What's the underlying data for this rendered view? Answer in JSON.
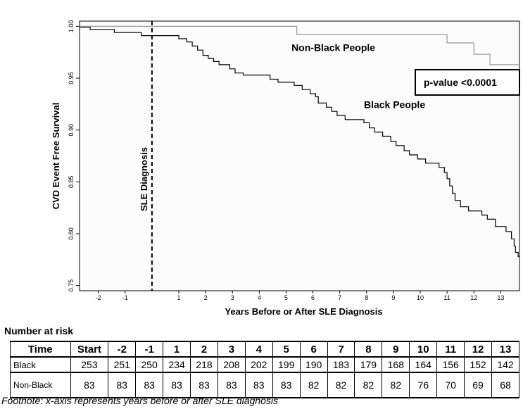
{
  "chart_data": {
    "type": "line",
    "title": "",
    "xlabel": "Years Before or After SLE Diagnosis",
    "ylabel": "CVD Event Free Survival",
    "xlim": [
      -2.7,
      13.7
    ],
    "ylim": [
      0.745,
      1.005
    ],
    "x_ticks": [
      -2,
      -1,
      1,
      2,
      3,
      4,
      5,
      6,
      7,
      8,
      9,
      10,
      11,
      12,
      13
    ],
    "y_ticks": [
      "0.75",
      "0.80",
      "0.85",
      "0.90",
      "0.95",
      "1.00"
    ],
    "vline": {
      "x": 0,
      "label": "SLE Diagnosis"
    },
    "pvalue_label": "p-value <0.0001",
    "series": [
      {
        "name": "Non-Black People",
        "color": "#999999",
        "step": true,
        "points": [
          [
            -2.7,
            1.0
          ],
          [
            5.4,
            1.0
          ],
          [
            5.4,
            0.992
          ],
          [
            11.0,
            0.992
          ],
          [
            11.0,
            0.984
          ],
          [
            12.0,
            0.984
          ],
          [
            12.0,
            0.973
          ],
          [
            12.6,
            0.973
          ],
          [
            12.6,
            0.963
          ],
          [
            13.7,
            0.963
          ]
        ]
      },
      {
        "name": "Black People",
        "color": "#000000",
        "step": true,
        "points": [
          [
            -2.7,
            0.999
          ],
          [
            -2.3,
            0.999
          ],
          [
            -2.3,
            0.997
          ],
          [
            -1.4,
            0.997
          ],
          [
            -1.4,
            0.994
          ],
          [
            -0.4,
            0.994
          ],
          [
            -0.4,
            0.991
          ],
          [
            1.0,
            0.991
          ],
          [
            1.0,
            0.988
          ],
          [
            1.3,
            0.988
          ],
          [
            1.3,
            0.985
          ],
          [
            1.5,
            0.985
          ],
          [
            1.5,
            0.981
          ],
          [
            1.7,
            0.981
          ],
          [
            1.7,
            0.977
          ],
          [
            1.9,
            0.977
          ],
          [
            1.9,
            0.972
          ],
          [
            2.1,
            0.972
          ],
          [
            2.1,
            0.969
          ],
          [
            2.3,
            0.969
          ],
          [
            2.3,
            0.966
          ],
          [
            2.5,
            0.966
          ],
          [
            2.5,
            0.963
          ],
          [
            2.9,
            0.963
          ],
          [
            2.9,
            0.959
          ],
          [
            3.1,
            0.959
          ],
          [
            3.1,
            0.955
          ],
          [
            3.4,
            0.955
          ],
          [
            3.4,
            0.953
          ],
          [
            4.4,
            0.953
          ],
          [
            4.4,
            0.949
          ],
          [
            4.7,
            0.949
          ],
          [
            4.7,
            0.946
          ],
          [
            5.3,
            0.946
          ],
          [
            5.3,
            0.943
          ],
          [
            5.6,
            0.943
          ],
          [
            5.6,
            0.939
          ],
          [
            5.9,
            0.939
          ],
          [
            5.9,
            0.935
          ],
          [
            6.1,
            0.935
          ],
          [
            6.1,
            0.932
          ],
          [
            6.2,
            0.932
          ],
          [
            6.2,
            0.926
          ],
          [
            6.5,
            0.926
          ],
          [
            6.5,
            0.922
          ],
          [
            6.7,
            0.922
          ],
          [
            6.7,
            0.918
          ],
          [
            6.9,
            0.918
          ],
          [
            6.9,
            0.914
          ],
          [
            7.2,
            0.914
          ],
          [
            7.2,
            0.91
          ],
          [
            7.9,
            0.91
          ],
          [
            7.9,
            0.907
          ],
          [
            8.1,
            0.907
          ],
          [
            8.1,
            0.902
          ],
          [
            8.3,
            0.902
          ],
          [
            8.3,
            0.898
          ],
          [
            8.6,
            0.898
          ],
          [
            8.6,
            0.894
          ],
          [
            8.9,
            0.894
          ],
          [
            8.9,
            0.889
          ],
          [
            9.1,
            0.889
          ],
          [
            9.1,
            0.885
          ],
          [
            9.4,
            0.885
          ],
          [
            9.4,
            0.88
          ],
          [
            9.6,
            0.88
          ],
          [
            9.6,
            0.876
          ],
          [
            9.9,
            0.876
          ],
          [
            9.9,
            0.872
          ],
          [
            10.2,
            0.872
          ],
          [
            10.2,
            0.868
          ],
          [
            10.7,
            0.868
          ],
          [
            10.7,
            0.864
          ],
          [
            10.9,
            0.864
          ],
          [
            10.9,
            0.859
          ],
          [
            11.0,
            0.859
          ],
          [
            11.0,
            0.853
          ],
          [
            11.1,
            0.853
          ],
          [
            11.1,
            0.846
          ],
          [
            11.2,
            0.846
          ],
          [
            11.2,
            0.839
          ],
          [
            11.3,
            0.839
          ],
          [
            11.3,
            0.832
          ],
          [
            11.5,
            0.832
          ],
          [
            11.5,
            0.826
          ],
          [
            11.8,
            0.826
          ],
          [
            11.8,
            0.822
          ],
          [
            12.3,
            0.822
          ],
          [
            12.3,
            0.818
          ],
          [
            12.5,
            0.818
          ],
          [
            12.5,
            0.814
          ],
          [
            12.8,
            0.814
          ],
          [
            12.8,
            0.807
          ],
          [
            13.2,
            0.807
          ],
          [
            13.2,
            0.802
          ],
          [
            13.4,
            0.802
          ],
          [
            13.4,
            0.795
          ],
          [
            13.5,
            0.795
          ],
          [
            13.5,
            0.788
          ],
          [
            13.55,
            0.788
          ],
          [
            13.55,
            0.782
          ],
          [
            13.65,
            0.782
          ],
          [
            13.65,
            0.778
          ],
          [
            13.7,
            0.778
          ]
        ]
      }
    ],
    "labels": [
      {
        "text": "Non-Black People",
        "x": 5.2,
        "y": 0.976
      },
      {
        "text": "Black People",
        "x": 7.9,
        "y": 0.921
      }
    ]
  },
  "risk_table": {
    "title": "Number at risk",
    "headers": [
      "Time",
      "Start",
      "-2",
      "-1",
      "1",
      "2",
      "3",
      "4",
      "5",
      "6",
      "7",
      "8",
      "9",
      "10",
      "11",
      "12",
      "13"
    ],
    "rows": [
      {
        "label": "Black",
        "values": [
          "253",
          "251",
          "250",
          "234",
          "218",
          "208",
          "202",
          "199",
          "190",
          "183",
          "179",
          "168",
          "164",
          "156",
          "152",
          "142"
        ]
      },
      {
        "label": "Non-Black",
        "values": [
          "83",
          "83",
          "83",
          "83",
          "83",
          "83",
          "83",
          "83",
          "82",
          "82",
          "82",
          "82",
          "76",
          "70",
          "69",
          "68"
        ]
      }
    ]
  },
  "footnote": "Footnote: x-axis represents years before or after SLE diagnosis"
}
